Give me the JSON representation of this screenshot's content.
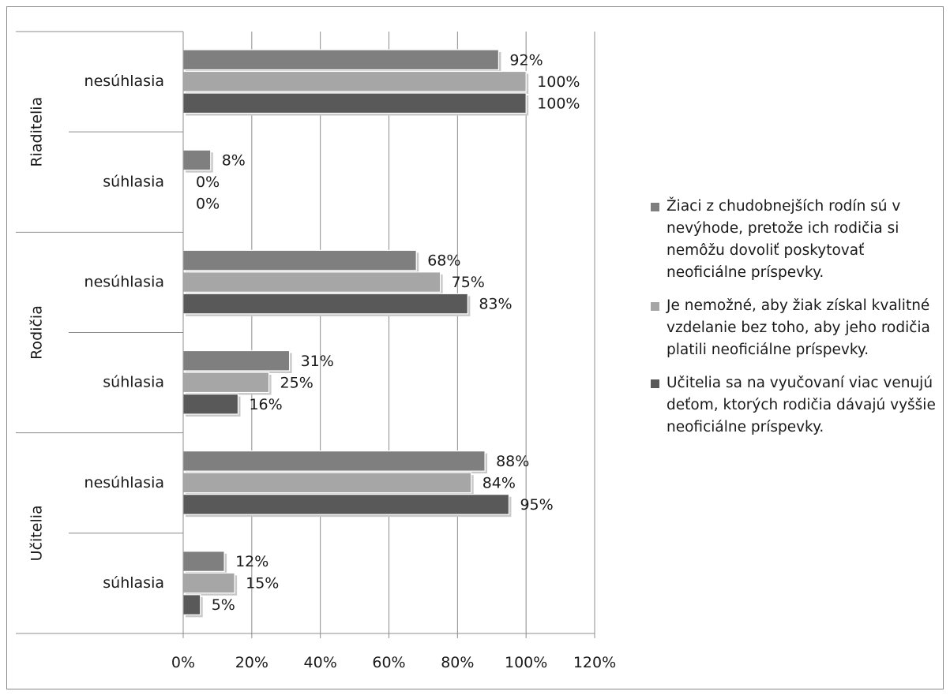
{
  "chart_data": {
    "type": "bar",
    "orientation": "horizontal",
    "groups": [
      {
        "label": "Riaditelia",
        "categories": [
          "nesúhlasia",
          "súhlasia"
        ]
      },
      {
        "label": "Rodičia",
        "categories": [
          "nesúhlasia",
          "súhlasia"
        ]
      },
      {
        "label": "Učitelia",
        "categories": [
          "nesúhlasia",
          "súhlasia"
        ]
      }
    ],
    "series": [
      {
        "name": "Žiaci z chudobnejších rodín sú v nevýhode, pretože ich rodičia si nemôžu dovoliť poskytovať neoficiálne príspevky.",
        "color": "#7f7f7f",
        "values": [
          92,
          8,
          68,
          31,
          88,
          12
        ],
        "labels": [
          "92%",
          "8%",
          "68%",
          "31%",
          "88%",
          "12%"
        ]
      },
      {
        "name": "Je nemožné, aby žiak získal kvalitné vzdelanie bez toho, aby jeho rodičia platili neoficiálne príspevky.",
        "color": "#a6a6a6",
        "values": [
          100,
          0,
          75,
          25,
          84,
          15
        ],
        "labels": [
          "100%",
          "0%",
          "75%",
          "25%",
          "84%",
          "15%"
        ]
      },
      {
        "name": "Učitelia sa na vyučovaní viac venujú deťom, ktorých rodičia dávajú vyššie neoficiálne príspevky.",
        "color": "#595959",
        "values": [
          100,
          0,
          83,
          16,
          95,
          5
        ],
        "labels": [
          "100%",
          "0%",
          "83%",
          "16%",
          "95%",
          "5%"
        ]
      }
    ],
    "xlim": [
      0,
      120
    ],
    "xticks": [
      "0%",
      "20%",
      "40%",
      "60%",
      "80%",
      "100%",
      "120%"
    ],
    "grid": true,
    "legend_position": "right"
  }
}
